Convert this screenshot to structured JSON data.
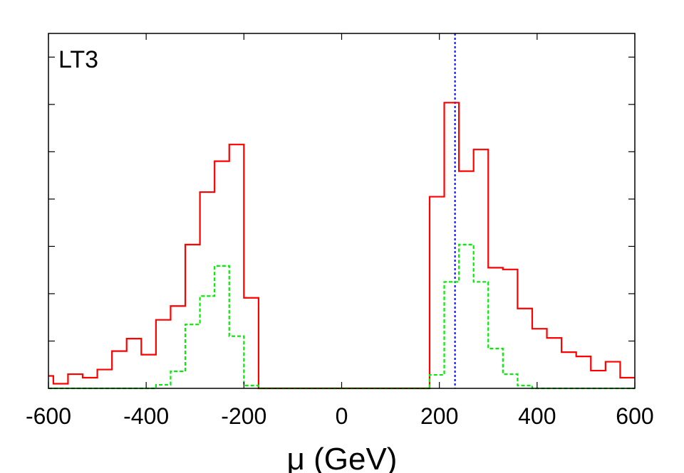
{
  "chart_data": {
    "type": "histogram",
    "title": "",
    "panel_label": "LT3",
    "xlabel": "μ (GeV)",
    "ylabel": "",
    "xlim": [
      -600,
      600
    ],
    "ylim": [
      0,
      1
    ],
    "grid": false,
    "legend": "none",
    "bin_width": 30,
    "x_ticks": [
      -600,
      -400,
      -200,
      0,
      200,
      400,
      600
    ],
    "x_tick_labels": [
      "-600",
      "-400",
      "-200",
      "0",
      "200",
      "400",
      "600"
    ],
    "y_ticks": [
      0,
      0.1333,
      0.2667,
      0.4,
      0.5333,
      0.6667,
      0.8,
      0.9333
    ],
    "vline": {
      "x": 232,
      "color": "#0000ff",
      "style": "dotted"
    },
    "series": [
      {
        "color": "#ff0000",
        "style": "solid",
        "bins": [
          {
            "x0": -600,
            "x1": -590,
            "y": 0.035
          },
          {
            "x0": -590,
            "x1": -560,
            "y": 0.013
          },
          {
            "x0": -560,
            "x1": -530,
            "y": 0.04
          },
          {
            "x0": -530,
            "x1": -500,
            "y": 0.03
          },
          {
            "x0": -500,
            "x1": -470,
            "y": 0.053
          },
          {
            "x0": -470,
            "x1": -440,
            "y": 0.105
          },
          {
            "x0": -440,
            "x1": -410,
            "y": 0.14
          },
          {
            "x0": -410,
            "x1": -380,
            "y": 0.095
          },
          {
            "x0": -380,
            "x1": -350,
            "y": 0.193
          },
          {
            "x0": -350,
            "x1": -320,
            "y": 0.232
          },
          {
            "x0": -320,
            "x1": -290,
            "y": 0.405
          },
          {
            "x0": -290,
            "x1": -260,
            "y": 0.553
          },
          {
            "x0": -260,
            "x1": -230,
            "y": 0.64
          },
          {
            "x0": -230,
            "x1": -200,
            "y": 0.687
          },
          {
            "x0": -200,
            "x1": -170,
            "y": 0.255
          },
          {
            "x0": -170,
            "x1": 180,
            "y": 0.0
          },
          {
            "x0": 180,
            "x1": 210,
            "y": 0.54
          },
          {
            "x0": 210,
            "x1": 240,
            "y": 0.805
          },
          {
            "x0": 240,
            "x1": 270,
            "y": 0.612
          },
          {
            "x0": 270,
            "x1": 300,
            "y": 0.673
          },
          {
            "x0": 300,
            "x1": 330,
            "y": 0.34
          },
          {
            "x0": 330,
            "x1": 360,
            "y": 0.335
          },
          {
            "x0": 360,
            "x1": 390,
            "y": 0.225
          },
          {
            "x0": 390,
            "x1": 420,
            "y": 0.168
          },
          {
            "x0": 420,
            "x1": 450,
            "y": 0.142
          },
          {
            "x0": 450,
            "x1": 480,
            "y": 0.102
          },
          {
            "x0": 480,
            "x1": 510,
            "y": 0.09
          },
          {
            "x0": 510,
            "x1": 540,
            "y": 0.05
          },
          {
            "x0": 540,
            "x1": 570,
            "y": 0.075
          },
          {
            "x0": 570,
            "x1": 600,
            "y": 0.03
          }
        ]
      },
      {
        "color": "#00ee00",
        "style": "dashed",
        "bins": [
          {
            "x0": -600,
            "x1": -380,
            "y": 0.0
          },
          {
            "x0": -380,
            "x1": -350,
            "y": 0.01
          },
          {
            "x0": -350,
            "x1": -320,
            "y": 0.048
          },
          {
            "x0": -320,
            "x1": -290,
            "y": 0.18
          },
          {
            "x0": -290,
            "x1": -260,
            "y": 0.26
          },
          {
            "x0": -260,
            "x1": -230,
            "y": 0.345
          },
          {
            "x0": -230,
            "x1": -200,
            "y": 0.147
          },
          {
            "x0": -200,
            "x1": -170,
            "y": 0.008
          },
          {
            "x0": -170,
            "x1": 180,
            "y": 0.0
          },
          {
            "x0": 180,
            "x1": 210,
            "y": 0.038
          },
          {
            "x0": 210,
            "x1": 240,
            "y": 0.3
          },
          {
            "x0": 240,
            "x1": 270,
            "y": 0.405
          },
          {
            "x0": 270,
            "x1": 300,
            "y": 0.3
          },
          {
            "x0": 300,
            "x1": 330,
            "y": 0.112
          },
          {
            "x0": 330,
            "x1": 360,
            "y": 0.04
          },
          {
            "x0": 360,
            "x1": 390,
            "y": 0.008
          },
          {
            "x0": 390,
            "x1": 600,
            "y": 0.0
          }
        ]
      }
    ]
  }
}
